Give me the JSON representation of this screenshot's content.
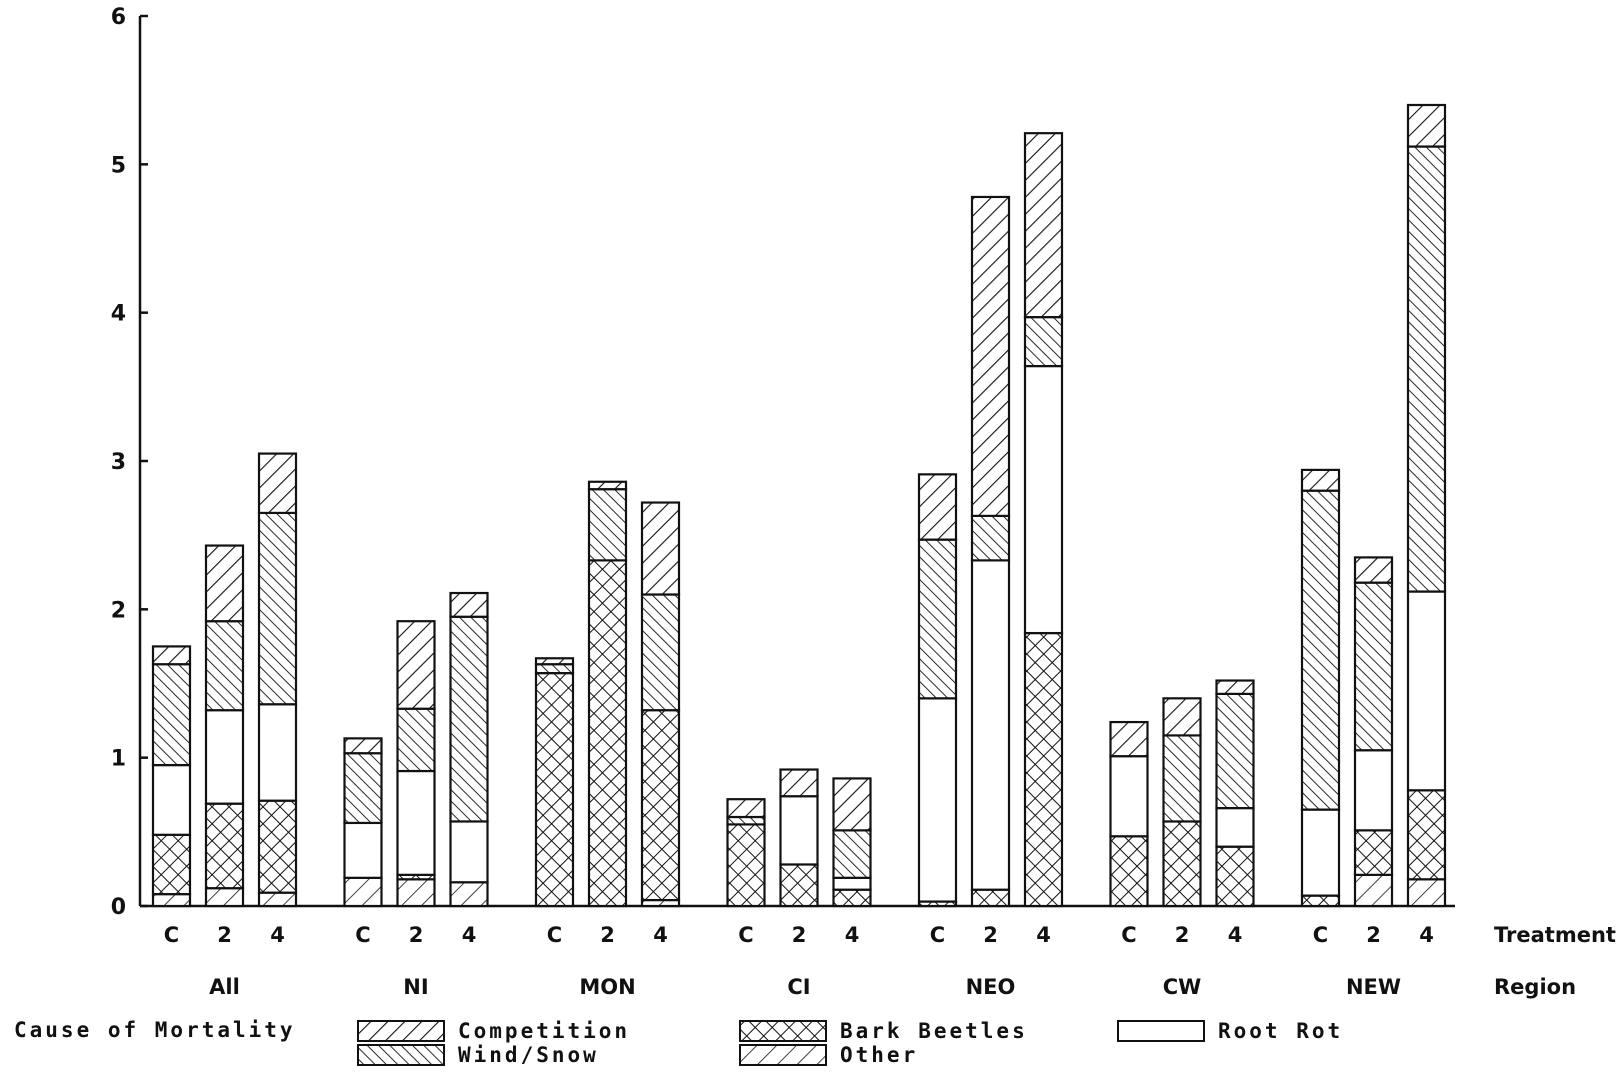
{
  "chart_data": {
    "type": "bar",
    "stacked": true,
    "title": "",
    "xlabel_rows": [
      "Treatment",
      "Region"
    ],
    "ylabel": "",
    "ylim": [
      0,
      6
    ],
    "yticks": [
      0,
      1,
      2,
      3,
      4,
      5,
      6
    ],
    "grid": false,
    "legend_title": "Cause of Mortality",
    "legend_position": "bottom",
    "stack_order": [
      "Other",
      "Bark Beetles",
      "Root Rot",
      "Wind/Snow",
      "Competition"
    ],
    "series_styles": {
      "Competition": {
        "pattern": "hatch-competition"
      },
      "Wind/Snow": {
        "pattern": "hatch-wind"
      },
      "Bark Beetles": {
        "pattern": "hatch-bark"
      },
      "Root Rot": {
        "pattern": "solid-white"
      },
      "Other": {
        "pattern": "hatch-other"
      }
    },
    "legend_entries": [
      {
        "name": "Competition",
        "pattern": "hatch-competition"
      },
      {
        "name": "Wind/Snow",
        "pattern": "hatch-wind"
      },
      {
        "name": "Bark Beetles",
        "pattern": "hatch-bark"
      },
      {
        "name": "Other",
        "pattern": "hatch-other"
      },
      {
        "name": "Root Rot",
        "pattern": "solid-white"
      }
    ],
    "groups": [
      {
        "region": "All",
        "bars": [
          {
            "treatment": "C",
            "values": {
              "Other": 0.08,
              "Bark Beetles": 0.4,
              "Root Rot": 0.47,
              "Wind/Snow": 0.68,
              "Competition": 0.12
            }
          },
          {
            "treatment": "2",
            "values": {
              "Other": 0.12,
              "Bark Beetles": 0.57,
              "Root Rot": 0.63,
              "Wind/Snow": 0.6,
              "Competition": 0.51
            }
          },
          {
            "treatment": "4",
            "values": {
              "Other": 0.09,
              "Bark Beetles": 0.62,
              "Root Rot": 0.65,
              "Wind/Snow": 1.29,
              "Competition": 0.4
            }
          }
        ]
      },
      {
        "region": "NI",
        "bars": [
          {
            "treatment": "C",
            "values": {
              "Other": 0.19,
              "Bark Beetles": 0.0,
              "Root Rot": 0.37,
              "Wind/Snow": 0.47,
              "Competition": 0.1
            }
          },
          {
            "treatment": "2",
            "values": {
              "Other": 0.18,
              "Bark Beetles": 0.03,
              "Root Rot": 0.7,
              "Wind/Snow": 0.42,
              "Competition": 0.59
            }
          },
          {
            "treatment": "4",
            "values": {
              "Other": 0.16,
              "Bark Beetles": 0.0,
              "Root Rot": 0.41,
              "Wind/Snow": 1.38,
              "Competition": 0.16
            }
          }
        ]
      },
      {
        "region": "MON",
        "bars": [
          {
            "treatment": "C",
            "values": {
              "Other": 0.0,
              "Bark Beetles": 1.57,
              "Root Rot": 0.0,
              "Wind/Snow": 0.06,
              "Competition": 0.04
            }
          },
          {
            "treatment": "2",
            "values": {
              "Other": 0.0,
              "Bark Beetles": 2.33,
              "Root Rot": 0.0,
              "Wind/Snow": 0.48,
              "Competition": 0.05
            }
          },
          {
            "treatment": "4",
            "values": {
              "Other": 0.04,
              "Bark Beetles": 1.28,
              "Root Rot": 0.0,
              "Wind/Snow": 0.78,
              "Competition": 0.62
            }
          }
        ]
      },
      {
        "region": "CI",
        "bars": [
          {
            "treatment": "C",
            "values": {
              "Other": 0.0,
              "Bark Beetles": 0.55,
              "Root Rot": 0.0,
              "Wind/Snow": 0.05,
              "Competition": 0.12
            }
          },
          {
            "treatment": "2",
            "values": {
              "Other": 0.0,
              "Bark Beetles": 0.28,
              "Root Rot": 0.46,
              "Wind/Snow": 0.0,
              "Competition": 0.18
            }
          },
          {
            "treatment": "4",
            "values": {
              "Other": 0.0,
              "Bark Beetles": 0.11,
              "Root Rot": 0.08,
              "Wind/Snow": 0.32,
              "Competition": 0.35
            }
          }
        ]
      },
      {
        "region": "NEO",
        "bars": [
          {
            "treatment": "C",
            "values": {
              "Other": 0.0,
              "Bark Beetles": 0.03,
              "Root Rot": 1.37,
              "Wind/Snow": 1.07,
              "Competition": 0.44
            }
          },
          {
            "treatment": "2",
            "values": {
              "Other": 0.0,
              "Bark Beetles": 0.11,
              "Root Rot": 2.22,
              "Wind/Snow": 0.3,
              "Competition": 2.15
            }
          },
          {
            "treatment": "4",
            "values": {
              "Other": 0.0,
              "Bark Beetles": 1.84,
              "Root Rot": 1.8,
              "Wind/Snow": 0.33,
              "Competition": 1.24
            }
          }
        ]
      },
      {
        "region": "CW",
        "bars": [
          {
            "treatment": "C",
            "values": {
              "Other": 0.0,
              "Bark Beetles": 0.47,
              "Root Rot": 0.54,
              "Wind/Snow": 0.0,
              "Competition": 0.23
            }
          },
          {
            "treatment": "2",
            "values": {
              "Other": 0.0,
              "Bark Beetles": 0.57,
              "Root Rot": 0.0,
              "Wind/Snow": 0.58,
              "Competition": 0.25
            }
          },
          {
            "treatment": "4",
            "values": {
              "Other": 0.0,
              "Bark Beetles": 0.4,
              "Root Rot": 0.26,
              "Wind/Snow": 0.77,
              "Competition": 0.09
            }
          }
        ]
      },
      {
        "region": "NEW",
        "bars": [
          {
            "treatment": "C",
            "values": {
              "Other": 0.0,
              "Bark Beetles": 0.07,
              "Root Rot": 0.58,
              "Wind/Snow": 2.15,
              "Competition": 0.14
            }
          },
          {
            "treatment": "2",
            "values": {
              "Other": 0.21,
              "Bark Beetles": 0.3,
              "Root Rot": 0.54,
              "Wind/Snow": 1.13,
              "Competition": 0.17
            }
          },
          {
            "treatment": "4",
            "values": {
              "Other": 0.18,
              "Bark Beetles": 0.6,
              "Root Rot": 1.34,
              "Wind/Snow": 3.0,
              "Competition": 0.28
            }
          }
        ]
      }
    ]
  }
}
